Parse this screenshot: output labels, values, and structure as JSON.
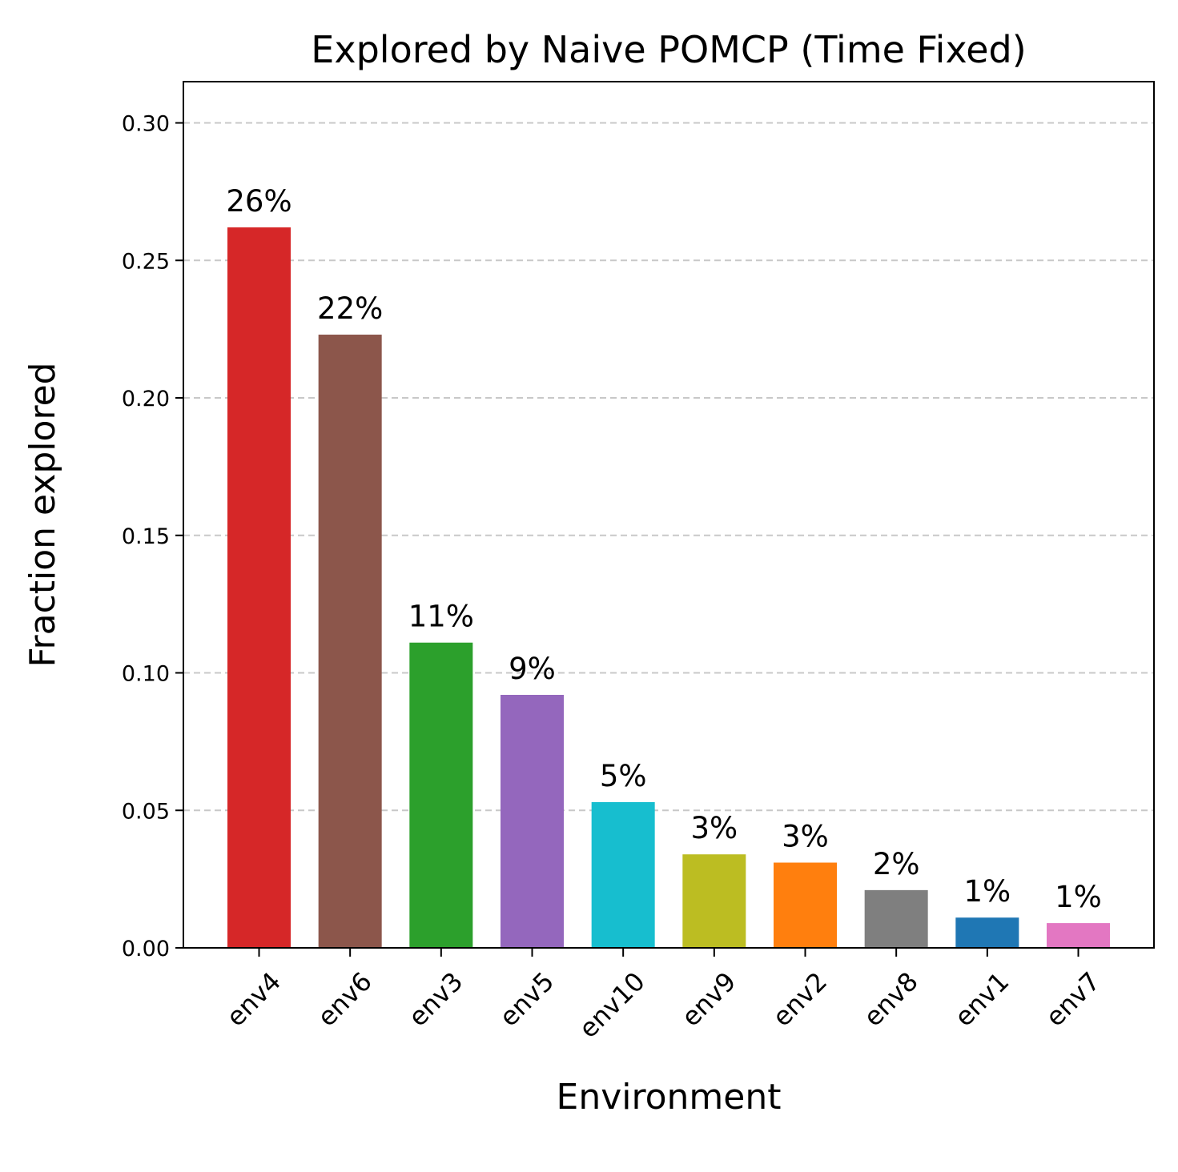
{
  "chart_data": {
    "type": "bar",
    "title": "Explored by Naive POMCP (Time Fixed)",
    "xlabel": "Environment",
    "ylabel": "Fraction explored",
    "categories": [
      "env4",
      "env6",
      "env3",
      "env5",
      "env10",
      "env9",
      "env2",
      "env8",
      "env1",
      "env7"
    ],
    "values": [
      0.262,
      0.223,
      0.111,
      0.092,
      0.053,
      0.034,
      0.031,
      0.021,
      0.011,
      0.009
    ],
    "data_labels": [
      "26%",
      "22%",
      "11%",
      "9%",
      "5%",
      "3%",
      "3%",
      "2%",
      "1%",
      "1%"
    ],
    "colors": [
      "#d62728",
      "#8c564b",
      "#2ca02c",
      "#9467bd",
      "#17becf",
      "#bcbd22",
      "#ff7f0e",
      "#7f7f7f",
      "#1f77b4",
      "#e377c2"
    ],
    "ylim": [
      0,
      0.315
    ],
    "yticks": [
      "0.00",
      "0.05",
      "0.10",
      "0.15",
      "0.20",
      "0.25",
      "0.30"
    ],
    "ytick_values": [
      0,
      0.05,
      0.1,
      0.15,
      0.2,
      0.25,
      0.3
    ],
    "grid": "horizontal dashed",
    "legend": "none"
  }
}
